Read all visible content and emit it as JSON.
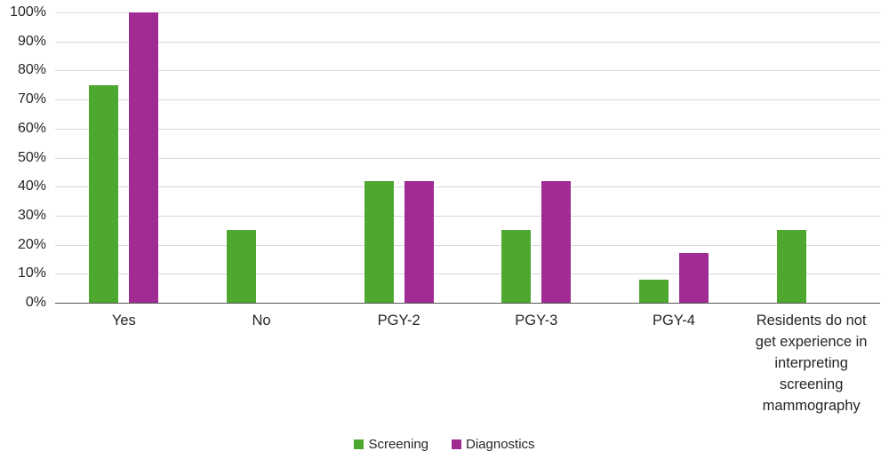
{
  "chart_data": {
    "type": "bar",
    "categories": [
      "Yes",
      "No",
      "PGY-2",
      "PGY-3",
      "PGY-4",
      "Residents do not get experience in interpreting screening mammography"
    ],
    "series": [
      {
        "name": "Screening",
        "color": "#4EA72E",
        "values": [
          75,
          25,
          42,
          25,
          8,
          25
        ]
      },
      {
        "name": "Diagnostics",
        "color": "#A02B93",
        "values": [
          100,
          0,
          42,
          42,
          17,
          0
        ]
      }
    ],
    "title": "",
    "xlabel": "",
    "ylabel": "",
    "ylim": [
      0,
      100
    ],
    "ytick_step": 10,
    "ytick_suffix": "%",
    "grid": true,
    "legend_position": "bottom",
    "colors": {
      "gridline": "#D9D9D9",
      "axis_line": "#595959",
      "text": "#262626",
      "background": "#FFFFFF"
    }
  }
}
